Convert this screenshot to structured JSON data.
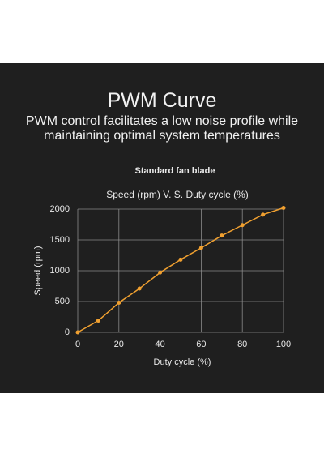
{
  "header": {
    "title": "PWM Curve",
    "subtitle": "PWM control facilitates a low noise profile while maintaining optimal system temperatures"
  },
  "chart_data": {
    "type": "line",
    "heading": "Standard fan blade",
    "title": "Speed (rpm) V. S. Duty cycle (%)",
    "x_label": "Duty cycle (%)",
    "y_label": "Speed (rpm)",
    "x": [
      0,
      10,
      20,
      30,
      40,
      50,
      60,
      70,
      80,
      90,
      100
    ],
    "series": [
      {
        "name": "Standard fan blade",
        "color": "#f0a030",
        "values": [
          0,
          190,
          480,
          710,
          970,
          1180,
          1370,
          1570,
          1740,
          1910,
          2020
        ]
      }
    ],
    "xlim": [
      0,
      100
    ],
    "xticks": [
      0,
      20,
      40,
      60,
      80,
      100
    ],
    "ylim": [
      0,
      2000
    ],
    "yticks": [
      0,
      500,
      1000,
      1500,
      2000
    ],
    "grid": true
  }
}
